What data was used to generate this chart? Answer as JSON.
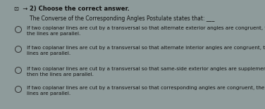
{
  "title": "2) Choose the correct answer.",
  "question": "The Converse of the Corresponding Angles Postulate states that: ___",
  "options": [
    "If two coplanar lines are cut by a transversal so that alternate exterior angles are congruent, then\nthe lines are parallel.",
    "If two coplanar lines are cut by a transversal so that alternate interior angles are congruent, then the\nlines are parallel.",
    "If two coplanar lines are cut by a transversal so that same-side exterior angles are supplementary,\nthen the lines are parallel.",
    "If two coplanar lines are cut by a transversal so that corresponding angles are congruent, then the\nlines are parallel."
  ],
  "bg_color": "#8e9b9b",
  "panel_color": "#b5b8a8",
  "text_color": "#111111",
  "circle_color": "#333333",
  "title_fontsize": 6.0,
  "question_fontsize": 5.5,
  "option_fontsize": 5.2,
  "figsize": [
    3.76,
    1.55
  ],
  "dpi": 100
}
